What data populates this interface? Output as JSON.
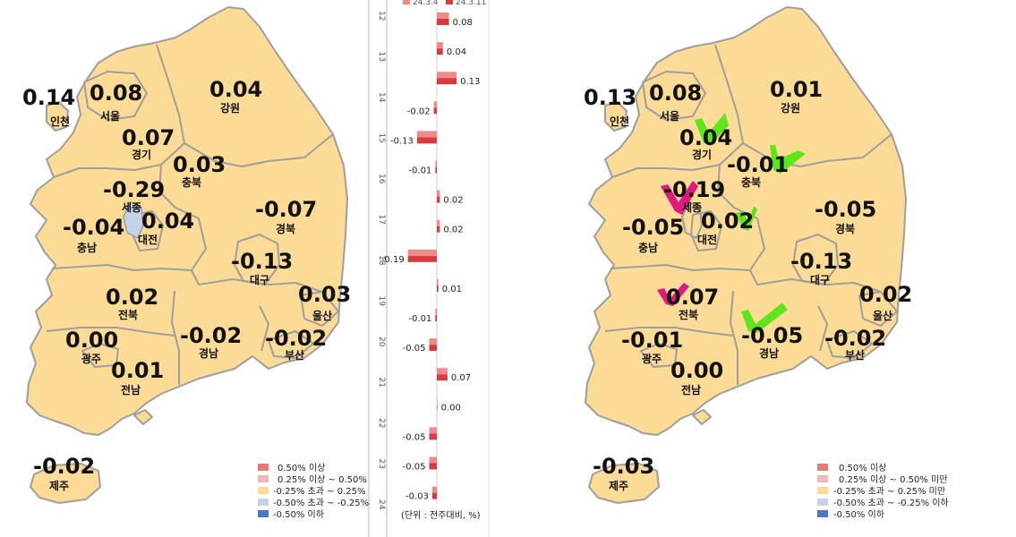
{
  "colors": {
    "land": "#fbdb95",
    "border": "#9e9e9e",
    "sejong_left": "#c5d3ea",
    "legend_ge050": "#e8797b",
    "legend_025_050": "#f4b7b5",
    "legend_mid": "#fbdb95",
    "legend_neg025_050": "#c5d3ea",
    "legend_le_neg050": "#4b78c2",
    "bar_light": "#f08a8a",
    "bar_dark": "#d63c3c",
    "check_green": "#5fe61a",
    "check_pink": "#e0197f"
  },
  "left_map": {
    "regions": [
      {
        "name": "인천",
        "value": "0.14"
      },
      {
        "name": "서울",
        "value": "0.08"
      },
      {
        "name": "강원",
        "value": "0.04"
      },
      {
        "name": "경기",
        "value": "0.07"
      },
      {
        "name": "충북",
        "value": "0.03"
      },
      {
        "name": "세종",
        "value": "-0.29"
      },
      {
        "name": "대전",
        "value": "0.04"
      },
      {
        "name": "충남",
        "value": "-0.04"
      },
      {
        "name": "경북",
        "value": "-0.07"
      },
      {
        "name": "대구",
        "value": "-0.13"
      },
      {
        "name": "울산",
        "value": "0.03"
      },
      {
        "name": "전북",
        "value": "0.02"
      },
      {
        "name": "광주",
        "value": "0.00"
      },
      {
        "name": "경남",
        "value": "-0.02"
      },
      {
        "name": "부산",
        "value": "-0.02"
      },
      {
        "name": "전남",
        "value": "0.01"
      },
      {
        "name": "제주",
        "value": "-0.02"
      }
    ],
    "legend": [
      "0.50% 이상",
      "0.25% 이상 ~ 0.50%",
      "-0.25% 초과 ~ 0.25%",
      "-0.50% 초과 ~ -0.25%",
      "-0.50% 이하"
    ]
  },
  "right_map": {
    "regions": [
      {
        "name": "인천",
        "value": "0.13"
      },
      {
        "name": "서울",
        "value": "0.08"
      },
      {
        "name": "강원",
        "value": "0.01"
      },
      {
        "name": "경기",
        "value": "0.04"
      },
      {
        "name": "충북",
        "value": "-0.01"
      },
      {
        "name": "세종",
        "value": "-0.19"
      },
      {
        "name": "대전",
        "value": "0.02"
      },
      {
        "name": "충남",
        "value": "-0.05"
      },
      {
        "name": "경북",
        "value": "-0.05"
      },
      {
        "name": "대구",
        "value": "-0.13"
      },
      {
        "name": "울산",
        "value": "0.02"
      },
      {
        "name": "전북",
        "value": "0.07"
      },
      {
        "name": "광주",
        "value": "-0.01"
      },
      {
        "name": "경남",
        "value": "-0.05"
      },
      {
        "name": "부산",
        "value": "-0.02"
      },
      {
        "name": "전남",
        "value": "0.00"
      },
      {
        "name": "제주",
        "value": "-0.03"
      }
    ],
    "legend": [
      "0.50% 이상",
      "0.25% 이상 ~ 0.50% 미만",
      "-0.25% 초과 ~ 0.25% 미만",
      "-0.50% 초과 ~ -0.25% 이하",
      "-0.50% 이하"
    ],
    "check_marks": [
      {
        "region": "경기",
        "color": "green"
      },
      {
        "region": "충북",
        "color": "green"
      },
      {
        "region": "세종",
        "color": "pink"
      },
      {
        "region": "대전",
        "color": "green"
      },
      {
        "region": "전북",
        "color": "pink"
      },
      {
        "region": "경남",
        "color": "green"
      }
    ]
  },
  "chart_data": {
    "type": "bar",
    "orientation": "horizontal",
    "legend_partial": [
      "24.3.4",
      "24.3.11"
    ],
    "tick_labels": [
      "12",
      "13",
      "14",
      "15",
      "16",
      "17",
      "18",
      "19",
      "20",
      "21",
      "22",
      "23",
      "24",
      "25"
    ],
    "values": [
      0.08,
      0.04,
      0.13,
      -0.02,
      -0.13,
      -0.01,
      0.02,
      0.02,
      -0.19,
      0.01,
      -0.01,
      -0.05,
      0.07,
      0.0,
      -0.05,
      -0.05,
      -0.03
    ],
    "value_labels": [
      "0.08",
      "0.04",
      "0.13",
      "-0.02",
      "-0.13",
      "-0.01",
      "0.02",
      "0.02",
      "-0.19",
      "0.01",
      "-0.01",
      "-0.05",
      "0.07",
      "0.00",
      "-0.05",
      "-0.05",
      "-0.03"
    ],
    "unit_label": "(단위 : 전주대비, %)"
  }
}
